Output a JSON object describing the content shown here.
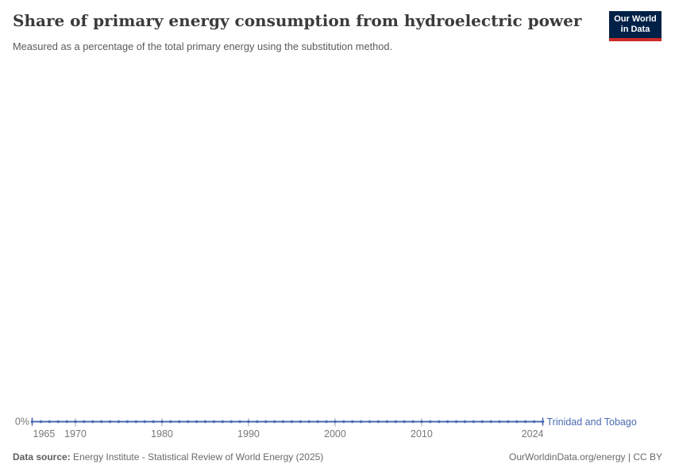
{
  "header": {
    "title": "Share of primary energy consumption from hydroelectric power",
    "subtitle": "Measured as a percentage of the total primary energy using the substitution method.",
    "logo": {
      "line1": "Our World",
      "line2": "in Data",
      "bg_color": "#002147",
      "accent_color": "#cc2a26"
    }
  },
  "chart_data": {
    "type": "line",
    "title": "Share of primary energy consumption from hydroelectric power",
    "xlabel": "",
    "ylabel": "",
    "grid": false,
    "legend_position": "inline-end-of-line",
    "x_ticks": [
      1965,
      1970,
      1980,
      1990,
      2000,
      2010,
      2024
    ],
    "y_ticks": [
      "0%"
    ],
    "ylim": [
      0,
      0
    ],
    "x": [
      1965,
      1966,
      1967,
      1968,
      1969,
      1970,
      1971,
      1972,
      1973,
      1974,
      1975,
      1976,
      1977,
      1978,
      1979,
      1980,
      1981,
      1982,
      1983,
      1984,
      1985,
      1986,
      1987,
      1988,
      1989,
      1990,
      1991,
      1992,
      1993,
      1994,
      1995,
      1996,
      1997,
      1998,
      1999,
      2000,
      2001,
      2002,
      2003,
      2004,
      2005,
      2006,
      2007,
      2008,
      2009,
      2010,
      2011,
      2012,
      2013,
      2014,
      2015,
      2016,
      2017,
      2018,
      2019,
      2020,
      2021,
      2022,
      2023,
      2024
    ],
    "series": [
      {
        "name": "Trinidad and Tobago",
        "color": "#4a6bb1",
        "values": [
          0,
          0,
          0,
          0,
          0,
          0,
          0,
          0,
          0,
          0,
          0,
          0,
          0,
          0,
          0,
          0,
          0,
          0,
          0,
          0,
          0,
          0,
          0,
          0,
          0,
          0,
          0,
          0,
          0,
          0,
          0,
          0,
          0,
          0,
          0,
          0,
          0,
          0,
          0,
          0,
          0,
          0,
          0,
          0,
          0,
          0,
          0,
          0,
          0,
          0,
          0,
          0,
          0,
          0,
          0,
          0,
          0,
          0,
          0,
          0
        ]
      }
    ],
    "axis_text_color": "#787878",
    "tick_color": "#a8a8a8"
  },
  "footer": {
    "source_label": "Data source:",
    "source_text": "Energy Institute - Statistical Review of World Energy (2025)",
    "credit": "OurWorldinData.org/energy | CC BY"
  }
}
